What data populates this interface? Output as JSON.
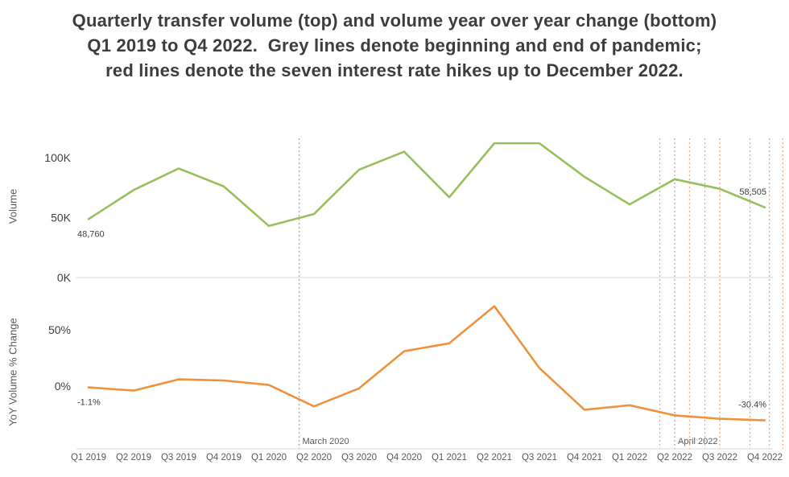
{
  "title_lines": [
    "Quarterly transfer volume (top) and volume year over year change (bottom)",
    "Q1 2019 to Q4 2022.  Grey lines denote beginning and end of pandemic;",
    "red lines denote the seven interest rate hikes up to December 2022."
  ],
  "chart_data": {
    "type": "line",
    "title": "Quarterly transfer volume (top) and volume year over year change (bottom) Q1 2019 to Q4 2022. Grey lines denote beginning and end of pandemic; red lines denote the seven interest rate hikes up to December 2022.",
    "categories": [
      "Q1 2019",
      "Q2 2019",
      "Q3 2019",
      "Q4 2019",
      "Q1 2020",
      "Q2 2020",
      "Q3 2020",
      "Q4 2020",
      "Q1 2021",
      "Q2 2021",
      "Q3 2021",
      "Q4 2021",
      "Q1 2022",
      "Q2 2022",
      "Q3 2022",
      "Q4 2022"
    ],
    "legend_position": "none",
    "grid": "zero-axis lines only",
    "colors": {
      "axis_line": "#d9d9d9",
      "tick_text": "#404040",
      "secondary_text": "#595959",
      "pandemic_line": "#ababab",
      "rate_hike_line": "#f5a873"
    },
    "panels": [
      {
        "name": "volume",
        "ylabel": "Volume",
        "ylim": [
          0,
          120000
        ],
        "yticks": [
          {
            "label": "100K",
            "value": 100000
          },
          {
            "label": "50K",
            "value": 50000
          },
          {
            "label": "0K",
            "value": 0
          }
        ],
        "series": {
          "name": "Quarterly transfer volume",
          "color": "#97c05c",
          "values": [
            48760,
            73000,
            91000,
            76000,
            43000,
            53000,
            90000,
            105000,
            67000,
            112000,
            112000,
            84000,
            61000,
            82000,
            74000,
            58505
          ]
        },
        "point_labels": [
          {
            "index": 0,
            "text": "48,760",
            "position": "below"
          },
          {
            "index": 15,
            "text": "58,505",
            "position": "above"
          }
        ]
      },
      {
        "name": "yoy-change",
        "ylabel": "YoY Volume % Change",
        "ylim": [
          -40,
          80
        ],
        "yticks": [
          {
            "label": "50%",
            "value": 50
          },
          {
            "label": "0%",
            "value": 0
          }
        ],
        "series": {
          "name": "Volume year over year % change",
          "color": "#ef923b",
          "values": [
            -1.1,
            -4,
            6,
            5,
            1,
            -18,
            -2,
            31,
            38,
            71,
            16,
            -21,
            -17,
            -26,
            -29,
            -30.4
          ]
        },
        "point_labels": [
          {
            "index": 0,
            "text": "-1.1%",
            "position": "below"
          },
          {
            "index": 15,
            "text": "-30.4%",
            "position": "above"
          }
        ]
      }
    ],
    "reference_lines": [
      {
        "x_index": 4.67,
        "kind": "pandemic",
        "color": "#ababab",
        "label": "March 2020"
      },
      {
        "x_index": 13.0,
        "kind": "pandemic",
        "color": "#ababab",
        "label": "April 2022"
      },
      {
        "x_index": 12.67,
        "kind": "rate-hike",
        "color": "#f5a873",
        "label": ""
      },
      {
        "x_index": 13.33,
        "kind": "rate-hike",
        "color": "#f5a873",
        "label": ""
      },
      {
        "x_index": 13.67,
        "kind": "rate-hike",
        "color": "#f5a873",
        "label": ""
      },
      {
        "x_index": 14.0,
        "kind": "rate-hike",
        "color": "#f5a873",
        "label": ""
      },
      {
        "x_index": 14.67,
        "kind": "rate-hike",
        "color": "#f5a873",
        "label": ""
      },
      {
        "x_index": 15.1,
        "kind": "rate-hike",
        "color": "#f5a873",
        "label": ""
      },
      {
        "x_index": 15.4,
        "kind": "rate-hike",
        "color": "#f5a873",
        "label": ""
      }
    ]
  }
}
